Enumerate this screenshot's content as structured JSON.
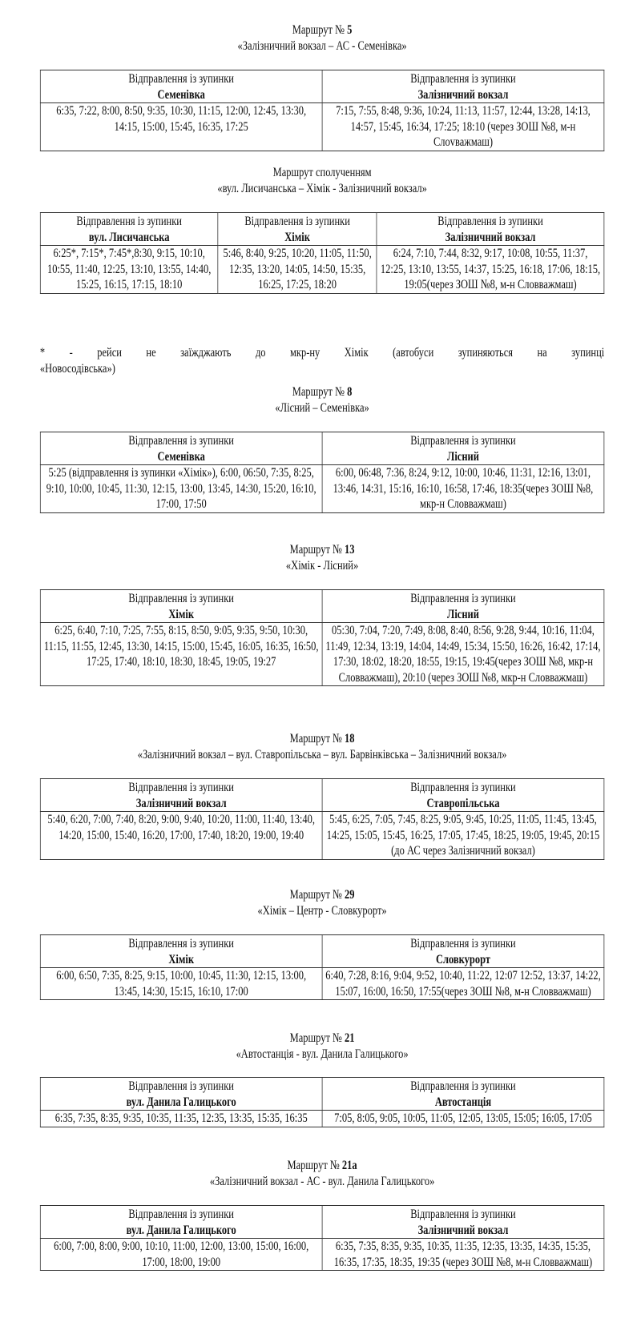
{
  "header_label": "Відправлення із зупинки",
  "routes": [
    {
      "prefix": "Маршрут №",
      "number": "5",
      "subtitle": "«Залізничний вокзал – АС - Семенівка»",
      "columns": [
        {
          "stop": "Семенівка",
          "times": "6:35, 7:22, 8:00, 8:50, 9:35, 10:30, 11:15, 12:00, 12:45, 13:30, 14:15, 15:00, 15:45, 16:35, 17:25"
        },
        {
          "stop": "Залізничний вокзал",
          "times": "7:15, 7:55, 8:48, 9:36, 10:24, 11:13, 11:57, 12:44, 13:28, 14:13, 14:57, 15:45, 16:34, 17:25; 18:10 (через ЗОШ №8, м-н Слovважмаш)"
        }
      ]
    },
    {
      "prefix": "Маршрут сполученням",
      "number": "",
      "subtitle": "«вул. Лисичанська – Хімік - Залізничний вокзал»",
      "columns": [
        {
          "stop": "вул. Лисичанська",
          "times": "6:25*, 7:15*, 7:45*,8:30, 9:15, 10:10, 10:55, 11:40, 12:25, 13:10, 13:55, 14:40, 15:25, 16:15, 17:15, 18:10"
        },
        {
          "stop": "Хімік",
          "times": "5:46, 8:40, 9:25, 10:20, 11:05, 11:50, 12:35, 13:20, 14:05, 14:50, 15:35, 16:25, 17:25, 18:20"
        },
        {
          "stop": "Залізничний вокзал",
          "times": "6:24, 7:10, 7:44, 8:32, 9:17, 10:08, 10:55, 11:37, 12:25, 13:10, 13:55, 14:37, 15:25, 16:18, 17:06, 18:15, 19:05(через ЗОШ №8, м-н Словважмаш)"
        }
      ],
      "footnote": [
        "* - рейси не заїжджають до мкр-ну Хімік (автобуси зупиняються на зупинці",
        "«Новосодівська»)"
      ]
    },
    {
      "prefix": "Маршрут №",
      "number": "8",
      "subtitle": "«Лісний – Семенівка»",
      "columns": [
        {
          "stop": "Семенівка",
          "times": "5:25 (відправлення із зупинки «Хімік»), 6:00, 06:50, 7:35, 8:25, 9:10, 10:00, 10:45, 11:30, 12:15, 13:00, 13:45, 14:30, 15:20, 16:10, 17:00, 17:50"
        },
        {
          "stop": "Лісний",
          "times": "6:00, 06:48, 7:36, 8:24, 9:12, 10:00, 10:46, 11:31, 12:16, 13:01, 13:46, 14:31, 15:16, 16:10, 16:58, 17:46, 18:35(через ЗОШ №8, мкр-н Словважмаш)"
        }
      ]
    },
    {
      "prefix": "Маршрут №",
      "number": "13",
      "subtitle": "«Хімік - Лісний»",
      "columns": [
        {
          "stop": "Хімік",
          "times": "6:25, 6:40, 7:10, 7:25, 7:55, 8:15, 8:50, 9:05, 9:35, 9:50, 10:30, 11:15, 11:55, 12:45, 13:30, 14:15, 15:00, 15:45, 16:05, 16:35, 16:50, 17:25, 17:40, 18:10, 18:30, 18:45, 19:05, 19:27"
        },
        {
          "stop": "Лісний",
          "times": "05:30, 7:04, 7:20, 7:49, 8:08, 8:40, 8:56, 9:28, 9:44, 10:16, 11:04, 11:49, 12:34, 13:19, 14:04, 14:49, 15:34, 15:50, 16:26, 16:42, 17:14, 17:30, 18:02, 18:20, 18:55, 19:15, 19:45(через ЗОШ №8, мкр-н Словважмаш), 20:10 (через ЗОШ №8, мкр-н Словважмаш)"
        }
      ]
    },
    {
      "prefix": "Маршрут №",
      "number": "18",
      "subtitle": "«Залізничний вокзал – вул. Ставропільська – вул. Барвінківська – Залізничний вокзал»",
      "columns": [
        {
          "stop": "Залізничний вокзал",
          "times": "5:40, 6:20, 7:00, 7:40, 8:20, 9:00, 9:40, 10:20, 11:00, 11:40, 13:40, 14:20, 15:00, 15:40, 16:20, 17:00, 17:40, 18:20, 19:00, 19:40"
        },
        {
          "stop": "Ставропільська",
          "times": "5:45, 6:25, 7:05, 7:45, 8:25, 9:05, 9:45, 10:25, 11:05, 11:45, 13:45, 14:25, 15:05, 15:45, 16:25, 17:05, 17:45, 18:25, 19:05, 19:45, 20:15 (до АС через Залізничний вокзал)"
        }
      ]
    },
    {
      "prefix": "Маршрут №",
      "number": "29",
      "subtitle": "«Хімік – Центр - Словкурорт»",
      "columns": [
        {
          "stop": "Хімік",
          "times": "6:00, 6:50, 7:35, 8:25, 9:15, 10:00, 10:45, 11:30, 12:15, 13:00, 13:45, 14:30, 15:15, 16:10, 17:00"
        },
        {
          "stop": "Словкурорт",
          "times": "6:40, 7:28, 8:16, 9:04, 9:52, 10:40, 11:22, 12:07 12:52, 13:37, 14:22, 15:07, 16:00, 16:50, 17:55(через ЗОШ №8, м-н Словважмаш)"
        }
      ]
    },
    {
      "prefix": "Маршрут №",
      "number": "21",
      "subtitle": "«Автостанція - вул. Данила Галицького»",
      "columns": [
        {
          "stop": "вул. Данила Галицького",
          "times": "6:35, 7:35, 8:35, 9:35, 10:35, 11:35, 12:35, 13:35, 15:35, 16:35"
        },
        {
          "stop": "Автостанція",
          "times": "7:05, 8:05, 9:05, 10:05, 11:05, 12:05, 13:05, 15:05; 16:05, 17:05"
        }
      ]
    },
    {
      "prefix": "Маршрут №",
      "number": "21а",
      "subtitle": "«Залізничний вокзал - АС - вул. Данила Галицького»",
      "columns": [
        {
          "stop": "вул. Данила Галицького",
          "times": "6:00, 7:00, 8:00, 9:00, 10:10, 11:00, 12:00, 13:00, 15:00, 16:00, 17:00, 18:00, 19:00"
        },
        {
          "stop": "Залізничний вокзал",
          "times": "6:35, 7:35, 8:35, 9:35, 10:35, 11:35, 12:35, 13:35, 14:35, 15:35, 16:35, 17:35, 18:35, 19:35 (через ЗОШ №8, м-н Словважмаш)"
        }
      ]
    }
  ]
}
